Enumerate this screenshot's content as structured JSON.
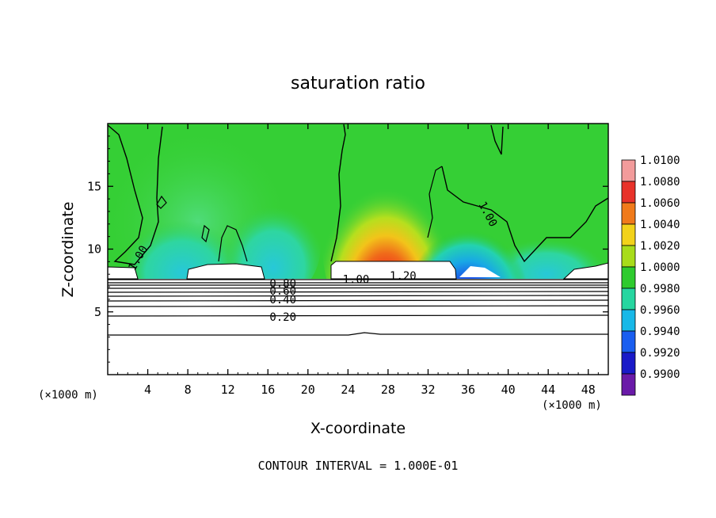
{
  "chart_data": {
    "type": "heatmap",
    "title": "saturation ratio",
    "xlabel": "X-coordinate",
    "ylabel": "Z-coordinate",
    "x_unit": "(×1000 m)",
    "xlim": [
      0,
      50
    ],
    "ylim": [
      0,
      20
    ],
    "x_ticks": [
      4,
      8,
      12,
      16,
      20,
      24,
      28,
      32,
      36,
      40,
      44,
      48
    ],
    "y_ticks": [
      5,
      10,
      15
    ],
    "colorbar": {
      "levels": [
        "1.0100",
        "1.0080",
        "1.0060",
        "1.0040",
        "1.0020",
        "1.0000",
        "0.9980",
        "0.9960",
        "0.9940",
        "0.9920",
        "0.9900"
      ],
      "colors": [
        "#f29b9b",
        "#e8322a",
        "#f07a1a",
        "#f2d21a",
        "#a8dc1a",
        "#2ecb2e",
        "#26d6a0",
        "#17b8e8",
        "#1a5ef0",
        "#1a1ac8",
        "#6a1aa8"
      ]
    },
    "contour_labels": [
      {
        "text": "0.20",
        "x": 17.5,
        "y": 4.6
      },
      {
        "text": "0.40",
        "x": 17.5,
        "y": 6.0
      },
      {
        "text": "0.60",
        "x": 17.5,
        "y": 6.7
      },
      {
        "text": "0.80",
        "x": 17.5,
        "y": 7.3
      },
      {
        "text": "1.00",
        "x": 24.8,
        "y": 7.6
      },
      {
        "text": "1.20",
        "x": 29.5,
        "y": 7.9
      },
      {
        "text": "1.00",
        "x": 38.0,
        "y": 12.8
      },
      {
        "text": "1.00",
        "x": 3.0,
        "y": 9.3
      }
    ],
    "footer": "CONTOUR INTERVAL = 1.000E-01"
  }
}
